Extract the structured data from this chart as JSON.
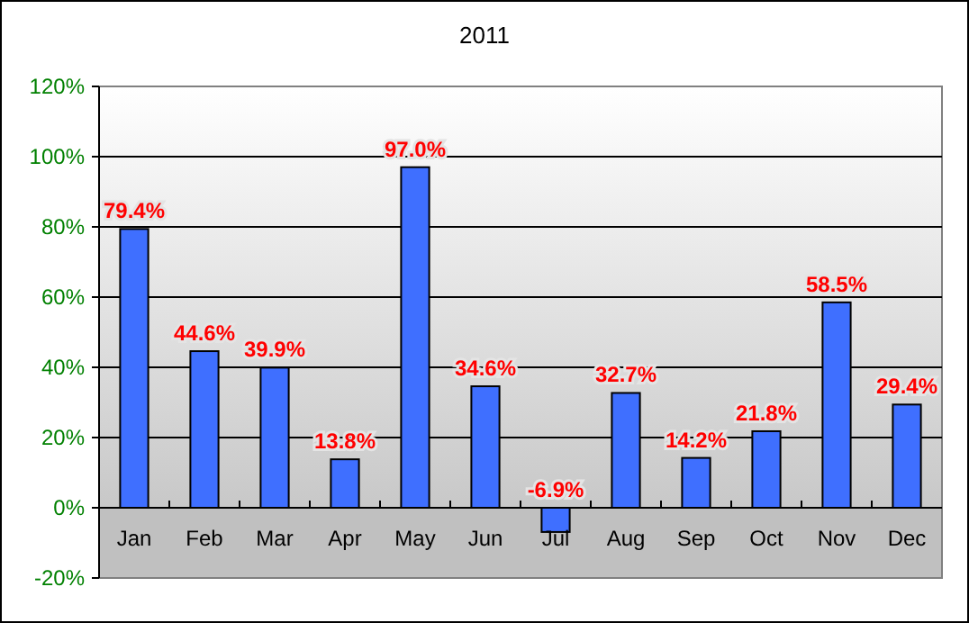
{
  "chart_data": {
    "type": "bar",
    "title": "2011",
    "categories": [
      "Jan",
      "Feb",
      "Mar",
      "Apr",
      "May",
      "Jun",
      "Jul",
      "Aug",
      "Sep",
      "Oct",
      "Nov",
      "Dec"
    ],
    "values": [
      79.4,
      44.6,
      39.9,
      13.8,
      97.0,
      34.6,
      -6.9,
      32.7,
      14.2,
      21.8,
      58.5,
      29.4
    ],
    "value_labels": [
      "79.4%",
      "44.6%",
      "39.9%",
      "13.8%",
      "97.0%",
      "34.6%",
      "-6.9%",
      "32.7%",
      "14.2%",
      "21.8%",
      "58.5%",
      "29.4%"
    ],
    "color": "#3f6fff",
    "ylim": [
      -20,
      120
    ],
    "yticks": [
      {
        "value": -20,
        "label": "-20%"
      },
      {
        "value": 0,
        "label": "0%"
      },
      {
        "value": 20,
        "label": "20%"
      },
      {
        "value": 40,
        "label": "40%"
      },
      {
        "value": 60,
        "label": "60%"
      },
      {
        "value": 80,
        "label": "80%"
      },
      {
        "value": 100,
        "label": "100%"
      },
      {
        "value": 120,
        "label": "120%"
      }
    ],
    "grid": "y"
  }
}
